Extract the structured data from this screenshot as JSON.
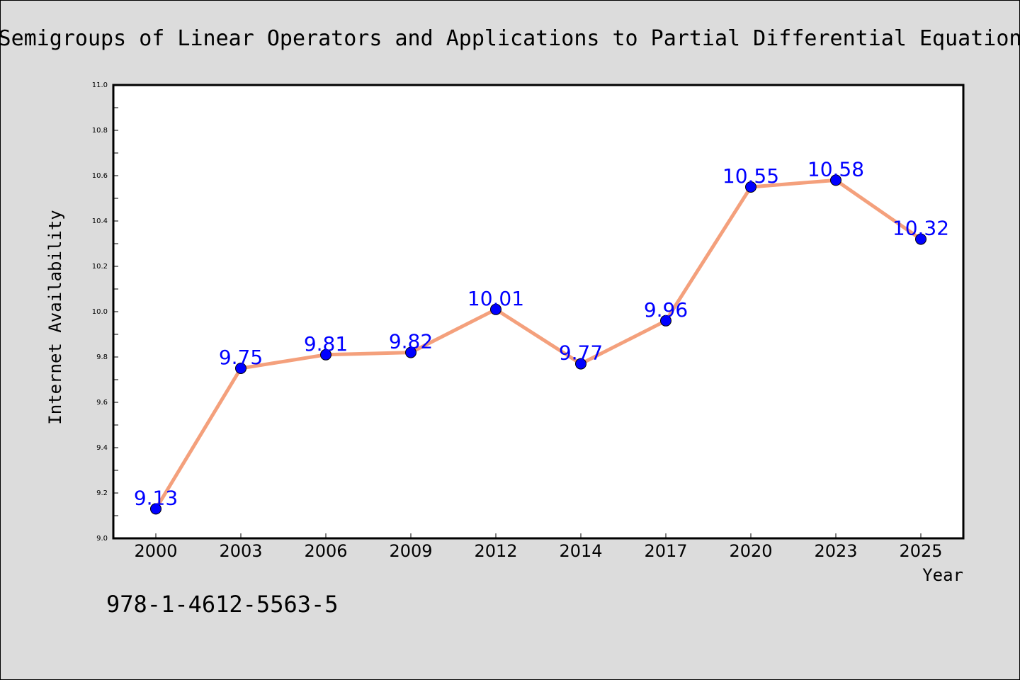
{
  "chart_data": {
    "type": "line",
    "title": "Semigroups of Linear Operators and Applications to Partial Differential Equation",
    "xlabel": "Year",
    "ylabel": "Internet Availability",
    "categories": [
      "2000",
      "2003",
      "2006",
      "2009",
      "2012",
      "2014",
      "2017",
      "2020",
      "2023",
      "2025"
    ],
    "values": [
      9.13,
      9.75,
      9.81,
      9.82,
      10.01,
      9.77,
      9.96,
      10.55,
      10.58,
      10.32
    ],
    "data_labels": [
      "9.13",
      "9.75",
      "9.81",
      "9.82",
      "10.01",
      "9.77",
      "9.96",
      "10.55",
      "10.58",
      "10.32"
    ],
    "ylim": [
      9.0,
      11.0
    ],
    "yticks": [
      "9.0",
      "9.2",
      "9.4",
      "9.6",
      "9.8",
      "10.0",
      "10.2",
      "10.4",
      "10.6",
      "10.8",
      "11.0"
    ],
    "grid": false,
    "legend": "none",
    "annotation": "978-1-4612-5563-5",
    "colors": {
      "background": "#dcdcdc",
      "plot_area": "#ffffff",
      "line": "#f4a07c",
      "marker": "#0000ff",
      "data_label": "#0000ff",
      "text": "#000000"
    }
  }
}
